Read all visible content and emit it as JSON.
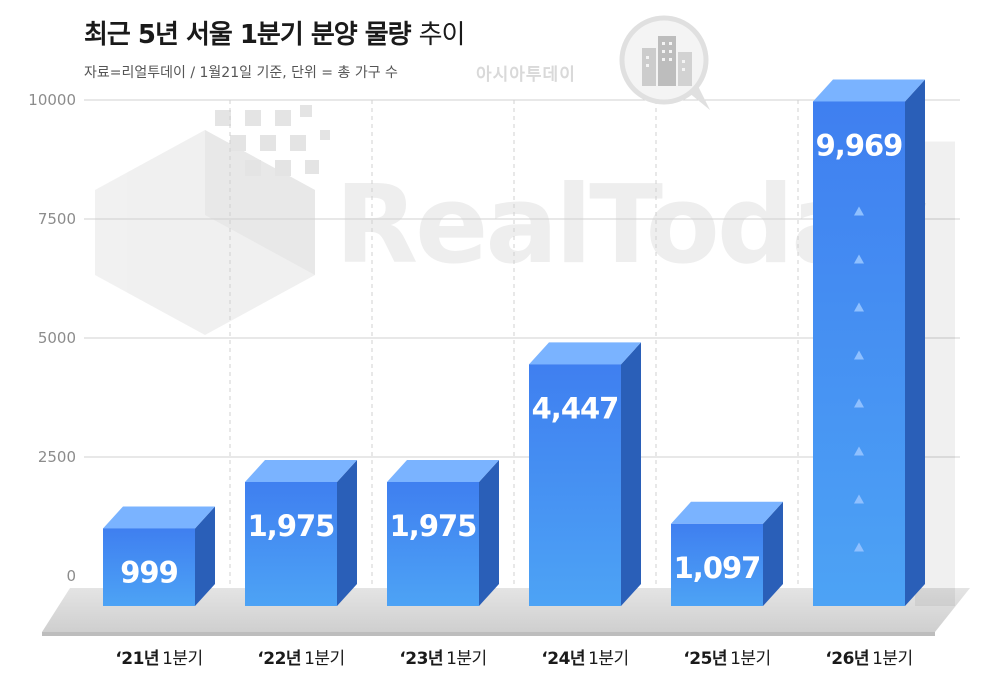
{
  "header": {
    "title_bold": "최근 5년 서울 1분기 분양 물량",
    "title_light": "추이",
    "subtitle": "자료=리얼투데이 / 1월21일 기준, 단위 = 총 가구 수",
    "publisher": "아시아투데이"
  },
  "watermark": {
    "text": "RealToday"
  },
  "colors": {
    "bar_front": "#4a90f0",
    "bar_top": "#7ab3ff",
    "bar_side": "#2a5fb8",
    "floor": "#dcdcdc",
    "grid": "#d0d0d0"
  },
  "chart_data": {
    "type": "bar",
    "title": "최근 5년 서울 1분기 분양 물량 추이",
    "categories": [
      "'21년 1분기",
      "'22년 1분기",
      "'23년 1분기",
      "'24년 1분기",
      "'25년 1분기",
      "'26년 1분기"
    ],
    "category_parts": [
      {
        "year": "‘21년",
        "quarter": "1분기"
      },
      {
        "year": "‘22년",
        "quarter": "1분기"
      },
      {
        "year": "‘23년",
        "quarter": "1분기"
      },
      {
        "year": "‘24년",
        "quarter": "1분기"
      },
      {
        "year": "‘25년",
        "quarter": "1분기"
      },
      {
        "year": "‘26년",
        "quarter": "1분기"
      }
    ],
    "values": [
      999,
      1975,
      1975,
      4447,
      1097,
      9969
    ],
    "value_labels": [
      "999",
      "1,975",
      "1,975",
      "4,447",
      "1,097",
      "9,969"
    ],
    "ylim": [
      0,
      10000
    ],
    "yticks": [
      0,
      2500,
      5000,
      7500,
      10000
    ],
    "ytick_labels": [
      "0",
      "2500",
      "5000",
      "7500",
      "10000"
    ],
    "grid": true,
    "legend": "none"
  }
}
